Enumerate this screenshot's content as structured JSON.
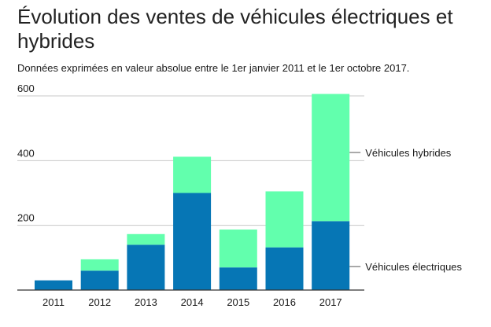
{
  "chart_data": {
    "type": "bar",
    "stacked": true,
    "title": "Évolution des ventes de véhicules électriques et hybrides",
    "subtitle": "Données exprimées en valeur absolue entre le 1er janvier 2011 et le 1er octobre 2017.",
    "categories": [
      "2011",
      "2012",
      "2013",
      "2014",
      "2015",
      "2016",
      "2017"
    ],
    "series": [
      {
        "name": "Véhicules électriques",
        "values": [
          30,
          60,
          140,
          300,
          70,
          132,
          213
        ]
      },
      {
        "name": "Véhicules hybrides",
        "values": [
          0,
          35,
          33,
          112,
          117,
          173,
          393
        ]
      }
    ],
    "ylim": [
      0,
      600
    ],
    "yticks": [
      "200",
      "400",
      "600"
    ],
    "grid": true,
    "legend": "right, inline labels",
    "xlabel": "",
    "ylabel": "",
    "colors": {
      "electric": "#0676b5",
      "hybrid": "#62ffad",
      "grid": "#c8c8c8",
      "axis": "#333333",
      "text": "#1a1a1a"
    }
  }
}
